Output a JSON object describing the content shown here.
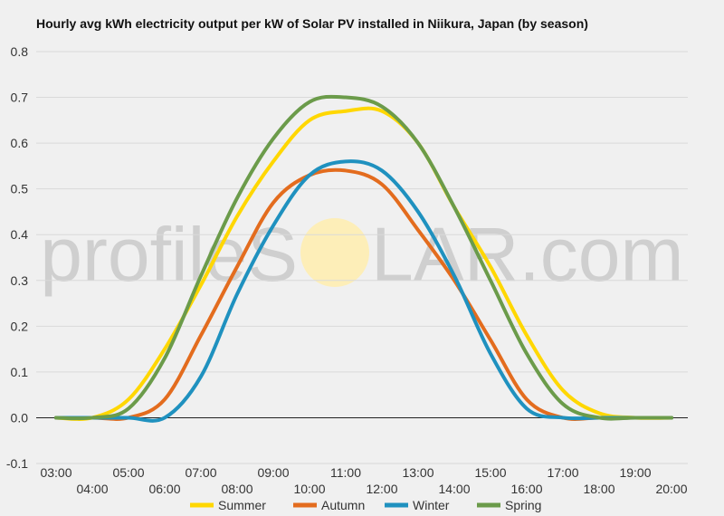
{
  "chart_data": {
    "type": "line",
    "title": "Hourly avg kWh electricity output per kW of Solar PV installed in Niikura, Japan (by season)",
    "xlabel": "",
    "ylabel": "",
    "ylim": [
      -0.1,
      0.8
    ],
    "yticks": [
      -0.1,
      0.0,
      0.1,
      0.2,
      0.3,
      0.4,
      0.5,
      0.6,
      0.7,
      0.8
    ],
    "ytick_labels": [
      "-0.1",
      "0.0",
      "0.1",
      "0.2",
      "0.3",
      "0.4",
      "0.5",
      "0.6",
      "0.7",
      "0.8"
    ],
    "x": [
      "03:00",
      "04:00",
      "05:00",
      "06:00",
      "07:00",
      "08:00",
      "09:00",
      "10:00",
      "11:00",
      "12:00",
      "13:00",
      "14:00",
      "15:00",
      "16:00",
      "17:00",
      "18:00",
      "19:00",
      "20:00"
    ],
    "grid": true,
    "legend_position": "bottom",
    "series": [
      {
        "name": "Summer",
        "color": "#ffd700",
        "values": [
          0,
          0,
          0.04,
          0.15,
          0.29,
          0.44,
          0.56,
          0.65,
          0.67,
          0.67,
          0.6,
          0.46,
          0.33,
          0.18,
          0.06,
          0.01,
          0,
          0
        ]
      },
      {
        "name": "Autumn",
        "color": "#e36c1e",
        "values": [
          0,
          0,
          0,
          0.04,
          0.18,
          0.33,
          0.47,
          0.53,
          0.54,
          0.51,
          0.41,
          0.3,
          0.17,
          0.04,
          0,
          0,
          0,
          0
        ]
      },
      {
        "name": "Winter",
        "color": "#1f91bf",
        "values": [
          0,
          0,
          0,
          0,
          0.09,
          0.27,
          0.42,
          0.53,
          0.56,
          0.54,
          0.45,
          0.31,
          0.14,
          0.02,
          0,
          0,
          0,
          0
        ]
      },
      {
        "name": "Spring",
        "color": "#6b9b4a",
        "values": [
          0,
          0,
          0.02,
          0.13,
          0.31,
          0.48,
          0.61,
          0.69,
          0.7,
          0.68,
          0.6,
          0.46,
          0.3,
          0.14,
          0.03,
          0,
          0,
          0
        ]
      }
    ]
  },
  "watermark": {
    "text_left": "profileS",
    "text_right": "LAR.com",
    "sun_color": "#fdeeb8"
  }
}
